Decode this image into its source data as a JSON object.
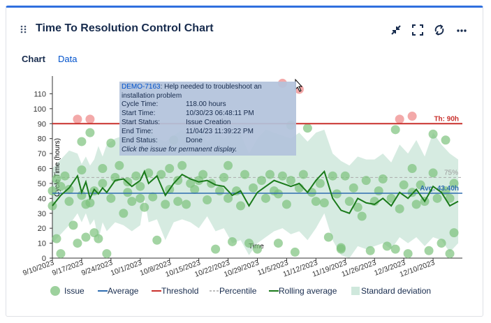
{
  "header": {
    "title": "Time To Resolution Control Chart",
    "icons": [
      "drag-handle-icon",
      "collapse-icon",
      "fullscreen-icon",
      "refresh-icon",
      "more-icon"
    ]
  },
  "tabs": [
    {
      "label": "Chart",
      "active": true
    },
    {
      "label": "Data",
      "active": false
    }
  ],
  "tooltip": {
    "issue_key": "DEMO-7163",
    "summary": ": Help needed to troubleshoot an installation problem",
    "rows": [
      {
        "label": "Cycle Time:",
        "value": "118.00 hours"
      },
      {
        "label": "Start Time:",
        "value": "10/30/23 06:48:11 PM"
      },
      {
        "label": "Start Status:",
        "value": "Issue Creation"
      },
      {
        "label": "End Time:",
        "value": "11/04/23 11:39:22 PM"
      },
      {
        "label": "End Status:",
        "value": "Done"
      }
    ],
    "note": "Click the issue for permanent display."
  },
  "legend": [
    {
      "label": "Issue",
      "icon": "issue-dot"
    },
    {
      "label": "Average",
      "icon": "average-line"
    },
    {
      "label": "Threshold",
      "icon": "threshold-line"
    },
    {
      "label": "Percentile",
      "icon": "percentile-dash"
    },
    {
      "label": "Rolling average",
      "icon": "rolling-line"
    },
    {
      "label": "Standard deviation",
      "icon": "std-band"
    }
  ],
  "colors": {
    "accent": "#2f6fde",
    "average": "#2f6db0",
    "threshold": "#c9302c",
    "percentile": "#aaaaaa",
    "rolling": "#1a7a1a",
    "issue": "#7cc27c",
    "issue_over": "#f2a0a0",
    "band": "#cfe8dc"
  },
  "chart_data": {
    "type": "scatter",
    "xlabel": "Time",
    "ylabel": "Cycle Time (hours)",
    "ylim": [
      0,
      120
    ],
    "yticks": [
      0,
      10,
      20,
      30,
      40,
      50,
      60,
      70,
      80,
      90,
      100,
      110
    ],
    "xlim": [
      "2023-09-10",
      "2023-12-17"
    ],
    "xticks": [
      "9/10/2023",
      "9/17/2023",
      "9/24/2023",
      "10/1/2023",
      "10/8/2023",
      "10/15/2023",
      "10/22/2023",
      "10/29/2023",
      "11/5/2023",
      "11/12/2023",
      "11/19/2023",
      "11/26/2023",
      "12/3/2023",
      "12/10/2023"
    ],
    "threshold": {
      "value": 90,
      "label": "Th: 90h"
    },
    "average": {
      "value": 43.4,
      "label": "Avg: 43.40h"
    },
    "percentile": {
      "value": 54,
      "label": "75%"
    },
    "issues_over_threshold": [
      {
        "x": "2023-09-16",
        "y": 93
      },
      {
        "x": "2023-09-19",
        "y": 93
      },
      {
        "x": "2023-11-04",
        "y": 117
      },
      {
        "x": "2023-11-08",
        "y": 113
      },
      {
        "x": "2023-12-02",
        "y": 93
      },
      {
        "x": "2023-12-05",
        "y": 95
      }
    ],
    "issues": [
      {
        "x": "2023-09-10",
        "y": 35
      },
      {
        "x": "2023-09-10",
        "y": 45
      },
      {
        "x": "2023-09-11",
        "y": 53
      },
      {
        "x": "2023-09-11",
        "y": 13
      },
      {
        "x": "2023-09-12",
        "y": 48
      },
      {
        "x": "2023-09-12",
        "y": 3
      },
      {
        "x": "2023-09-13",
        "y": 55
      },
      {
        "x": "2023-09-14",
        "y": 38
      },
      {
        "x": "2023-09-14",
        "y": 46
      },
      {
        "x": "2023-09-15",
        "y": 22
      },
      {
        "x": "2023-09-16",
        "y": 10
      },
      {
        "x": "2023-09-17",
        "y": 59
      },
      {
        "x": "2023-09-17",
        "y": 78
      },
      {
        "x": "2023-09-17",
        "y": 42
      },
      {
        "x": "2023-09-18",
        "y": 36
      },
      {
        "x": "2023-09-18",
        "y": 14
      },
      {
        "x": "2023-09-19",
        "y": 84
      },
      {
        "x": "2023-09-19",
        "y": 37
      },
      {
        "x": "2023-09-20",
        "y": 17
      },
      {
        "x": "2023-09-20",
        "y": 45
      },
      {
        "x": "2023-09-21",
        "y": 13
      },
      {
        "x": "2023-09-22",
        "y": 60
      },
      {
        "x": "2023-09-22",
        "y": 50
      },
      {
        "x": "2023-09-23",
        "y": 3
      },
      {
        "x": "2023-09-24",
        "y": 77
      },
      {
        "x": "2023-09-24",
        "y": 40
      },
      {
        "x": "2023-09-25",
        "y": 54
      },
      {
        "x": "2023-09-26",
        "y": 62
      },
      {
        "x": "2023-09-27",
        "y": 30
      },
      {
        "x": "2023-09-28",
        "y": 44
      },
      {
        "x": "2023-09-28",
        "y": 51
      },
      {
        "x": "2023-09-29",
        "y": 38
      },
      {
        "x": "2023-09-30",
        "y": 55
      },
      {
        "x": "2023-10-01",
        "y": 40
      },
      {
        "x": "2023-10-01",
        "y": 48
      },
      {
        "x": "2023-10-02",
        "y": 34
      },
      {
        "x": "2023-10-03",
        "y": 57
      },
      {
        "x": "2023-10-04",
        "y": 41
      },
      {
        "x": "2023-10-05",
        "y": 12
      },
      {
        "x": "2023-10-06",
        "y": 56
      },
      {
        "x": "2023-10-07",
        "y": 36
      },
      {
        "x": "2023-10-08",
        "y": 60
      },
      {
        "x": "2023-10-08",
        "y": 46
      },
      {
        "x": "2023-10-09",
        "y": 79
      },
      {
        "x": "2023-10-10",
        "y": 52
      },
      {
        "x": "2023-10-10",
        "y": 38
      },
      {
        "x": "2023-10-11",
        "y": 62
      },
      {
        "x": "2023-10-12",
        "y": 36
      },
      {
        "x": "2023-10-13",
        "y": 50
      },
      {
        "x": "2023-10-14",
        "y": 46
      },
      {
        "x": "2023-10-15",
        "y": 52
      },
      {
        "x": "2023-10-16",
        "y": 56
      },
      {
        "x": "2023-10-17",
        "y": 39
      },
      {
        "x": "2023-10-18",
        "y": 50
      },
      {
        "x": "2023-10-19",
        "y": 6
      },
      {
        "x": "2023-10-20",
        "y": 45
      },
      {
        "x": "2023-10-21",
        "y": 54
      },
      {
        "x": "2023-10-22",
        "y": 62
      },
      {
        "x": "2023-10-22",
        "y": 40
      },
      {
        "x": "2023-10-23",
        "y": 11
      },
      {
        "x": "2023-10-24",
        "y": 45
      },
      {
        "x": "2023-10-25",
        "y": 35
      },
      {
        "x": "2023-10-26",
        "y": 56
      },
      {
        "x": "2023-10-27",
        "y": 10
      },
      {
        "x": "2023-10-28",
        "y": 47
      },
      {
        "x": "2023-10-29",
        "y": 6
      },
      {
        "x": "2023-10-30",
        "y": 52
      },
      {
        "x": "2023-10-31",
        "y": 40
      },
      {
        "x": "2023-11-01",
        "y": 56
      },
      {
        "x": "2023-11-02",
        "y": 45
      },
      {
        "x": "2023-11-03",
        "y": 10
      },
      {
        "x": "2023-11-03",
        "y": 43
      },
      {
        "x": "2023-11-04",
        "y": 55
      },
      {
        "x": "2023-11-05",
        "y": 36
      },
      {
        "x": "2023-11-06",
        "y": 89
      },
      {
        "x": "2023-11-06",
        "y": 52
      },
      {
        "x": "2023-11-07",
        "y": 4
      },
      {
        "x": "2023-11-08",
        "y": 47
      },
      {
        "x": "2023-11-09",
        "y": 56
      },
      {
        "x": "2023-11-10",
        "y": 87
      },
      {
        "x": "2023-11-11",
        "y": 44
      },
      {
        "x": "2023-11-12",
        "y": 38
      },
      {
        "x": "2023-11-13",
        "y": 50
      },
      {
        "x": "2023-11-14",
        "y": 37
      },
      {
        "x": "2023-11-15",
        "y": 14
      },
      {
        "x": "2023-11-16",
        "y": 55
      },
      {
        "x": "2023-11-17",
        "y": 43
      },
      {
        "x": "2023-11-18",
        "y": 7
      },
      {
        "x": "2023-11-18",
        "y": 6
      },
      {
        "x": "2023-11-19",
        "y": 55
      },
      {
        "x": "2023-11-20",
        "y": 38
      },
      {
        "x": "2023-11-21",
        "y": 47
      },
      {
        "x": "2023-11-22",
        "y": 34
      },
      {
        "x": "2023-11-23",
        "y": 28
      },
      {
        "x": "2023-11-24",
        "y": 52
      },
      {
        "x": "2023-11-25",
        "y": 5
      },
      {
        "x": "2023-11-26",
        "y": 38
      },
      {
        "x": "2023-11-27",
        "y": 45
      },
      {
        "x": "2023-11-28",
        "y": 53
      },
      {
        "x": "2023-11-29",
        "y": 8
      },
      {
        "x": "2023-11-30",
        "y": 40
      },
      {
        "x": "2023-12-01",
        "y": 6
      },
      {
        "x": "2023-12-01",
        "y": 86
      },
      {
        "x": "2023-12-02",
        "y": 33
      },
      {
        "x": "2023-12-03",
        "y": 49
      },
      {
        "x": "2023-12-04",
        "y": 3
      },
      {
        "x": "2023-12-05",
        "y": 60
      },
      {
        "x": "2023-12-05",
        "y": 44
      },
      {
        "x": "2023-12-06",
        "y": 36
      },
      {
        "x": "2023-12-07",
        "y": 49
      },
      {
        "x": "2023-12-08",
        "y": 38
      },
      {
        "x": "2023-12-09",
        "y": 5
      },
      {
        "x": "2023-12-10",
        "y": 83
      },
      {
        "x": "2023-12-10",
        "y": 57
      },
      {
        "x": "2023-12-11",
        "y": 40
      },
      {
        "x": "2023-12-12",
        "y": 10
      },
      {
        "x": "2023-12-13",
        "y": 79
      },
      {
        "x": "2023-12-13",
        "y": 45
      },
      {
        "x": "2023-12-14",
        "y": 40
      },
      {
        "x": "2023-12-14",
        "y": 3
      },
      {
        "x": "2023-12-15",
        "y": 17
      },
      {
        "x": "2023-12-15",
        "y": 50
      }
    ],
    "series": [
      {
        "name": "Rolling average",
        "x": [
          "2023-09-10",
          "2023-09-12",
          "2023-09-14",
          "2023-09-16",
          "2023-09-17",
          "2023-09-18",
          "2023-09-19",
          "2023-09-20",
          "2023-09-21",
          "2023-09-22",
          "2023-09-23",
          "2023-09-25",
          "2023-09-27",
          "2023-09-29",
          "2023-10-01",
          "2023-10-02",
          "2023-10-03",
          "2023-10-05",
          "2023-10-07",
          "2023-10-09",
          "2023-10-11",
          "2023-10-13",
          "2023-10-15",
          "2023-10-17",
          "2023-10-19",
          "2023-10-21",
          "2023-10-23",
          "2023-10-25",
          "2023-10-27",
          "2023-10-29",
          "2023-10-31",
          "2023-11-02",
          "2023-11-04",
          "2023-11-06",
          "2023-11-08",
          "2023-11-10",
          "2023-11-12",
          "2023-11-14",
          "2023-11-16",
          "2023-11-18",
          "2023-11-20",
          "2023-11-22",
          "2023-11-24",
          "2023-11-26",
          "2023-11-28",
          "2023-11-30",
          "2023-12-02",
          "2023-12-04",
          "2023-12-06",
          "2023-12-08",
          "2023-12-10",
          "2023-12-12",
          "2023-12-14",
          "2023-12-16"
        ],
        "values": [
          35,
          42,
          47,
          55,
          44,
          51,
          40,
          46,
          43,
          47,
          44,
          52,
          53,
          48,
          52,
          58,
          50,
          55,
          42,
          50,
          56,
          53,
          51,
          52,
          49,
          48,
          42,
          45,
          35,
          44,
          48,
          52,
          50,
          48,
          50,
          44,
          52,
          58,
          40,
          32,
          30,
          40,
          37,
          36,
          40,
          35,
          44,
          40,
          46,
          38,
          48,
          44,
          35,
          38
        ]
      },
      {
        "name": "Standard deviation upper",
        "values": [
          60,
          66,
          72,
          70,
          63,
          68,
          62,
          66,
          75,
          68,
          76,
          80,
          82,
          84,
          86,
          72,
          86,
          80,
          78,
          82,
          86,
          80,
          86,
          78,
          84,
          80,
          84,
          83,
          70,
          80,
          86,
          84,
          82,
          80,
          84,
          78,
          84,
          86,
          70,
          65,
          62,
          68,
          66,
          66,
          70,
          64,
          76,
          70,
          79,
          68,
          84,
          76,
          70,
          66
        ]
      },
      {
        "name": "Standard deviation lower",
        "values": [
          10,
          16,
          22,
          30,
          24,
          30,
          22,
          26,
          12,
          24,
          18,
          24,
          22,
          18,
          22,
          40,
          24,
          26,
          12,
          24,
          26,
          24,
          20,
          28,
          18,
          20,
          10,
          12,
          2,
          10,
          14,
          18,
          20,
          16,
          18,
          12,
          20,
          30,
          12,
          2,
          0,
          8,
          6,
          8,
          10,
          6,
          14,
          10,
          14,
          8,
          14,
          12,
          4,
          10
        ]
      }
    ]
  }
}
